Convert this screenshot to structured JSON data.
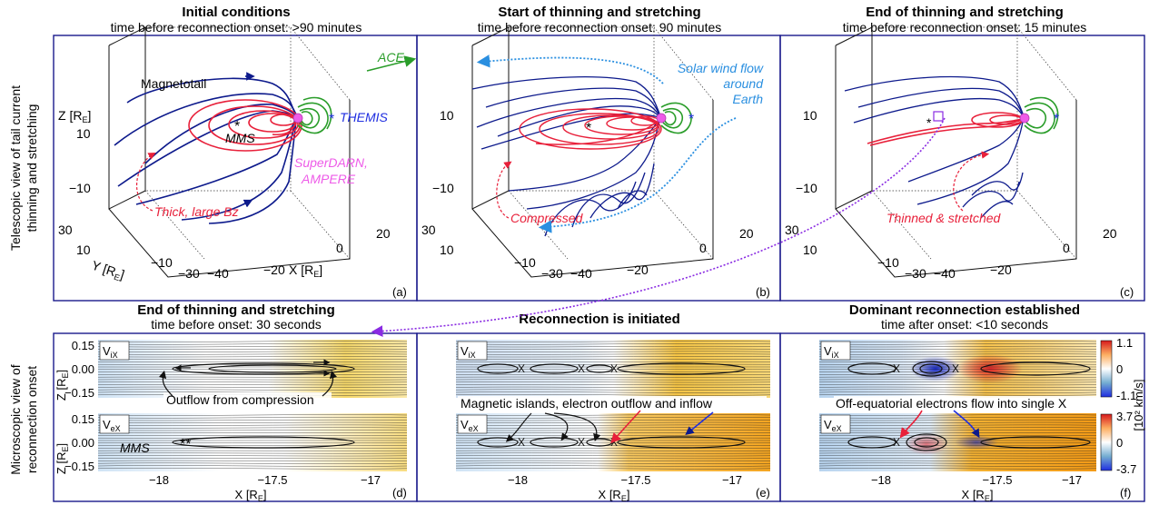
{
  "panel_titles": [
    {
      "title": "Initial conditions",
      "subtitle": "time before reconnection onset: >90 minutes"
    },
    {
      "title": "Start of thinning and stretching",
      "subtitle": "time before reconnection onset: 90 minutes"
    },
    {
      "title": "End of thinning and stretching",
      "subtitle": "time before reconnection onset: 15 minutes"
    },
    {
      "title": "End of thinning and stretching",
      "subtitle": "time before onset: 30 seconds"
    },
    {
      "title": "Reconnection is initiated",
      "subtitle": ""
    },
    {
      "title": "Dominant reconnection established",
      "subtitle": "time after onset: <10 seconds"
    }
  ],
  "row_labels": {
    "top": [
      "Telescopic view of tail current",
      "thinning and stretching"
    ],
    "bottom": [
      "Microscopic view of",
      "reconnection onset"
    ]
  },
  "panel_letters": [
    "(a)",
    "(b)",
    "(c)",
    "(d)",
    "(e)",
    "(f)"
  ],
  "axes3d": {
    "z_label": "Z [R",
    "z_sub": "E",
    "z_close": "]",
    "y_label": "Y [R",
    "y_sub": "E",
    "y_close": "]",
    "x_label": "X [R",
    "x_sub": "E",
    "x_close": "]",
    "z_ticks": [
      "10",
      "−10"
    ],
    "y_ticks": [
      "30",
      "10",
      "−10",
      "−30"
    ],
    "x_ticks": [
      "−40",
      "−20",
      "0",
      "20"
    ]
  },
  "annotations": {
    "a_magnetotail": "Magnetotail",
    "a_mms": "MMS",
    "a_themis": "THEMIS",
    "a_superdarn": "SuperDARN,",
    "a_ampere": "AMPERE",
    "a_thick": "Thick, large Bz",
    "ace": "ACE",
    "b_solarwind": [
      "Solar wind flow",
      "around",
      "Earth"
    ],
    "b_compressed": "Compressed",
    "c_thinned": "Thinned & stretched",
    "d_outflow": "Outflow from compression",
    "d_mms": "MMS",
    "e_islands": "Magnetic islands, electron outflow and inflow",
    "f_offequatorial": "Off-equatorial electrons flow into single X"
  },
  "plots2d": {
    "vix_label": "V",
    "vix_sub": "iX",
    "vex_label": "V",
    "vex_sub": "eX",
    "z_label": "Z [R",
    "z_sub": "E",
    "z_close": "]",
    "x_label": "X [R",
    "x_sub": "E",
    "x_close": "]",
    "z_ticks": [
      "0.15",
      "0.00",
      "−0.15"
    ],
    "x_ticks": [
      "−18",
      "−17.5",
      "−17"
    ]
  },
  "colorbars": {
    "unit": "[10² km/s]",
    "ion_ticks": [
      "1.1",
      "0",
      "-1.1"
    ],
    "electron_ticks": [
      "3.7",
      "0",
      "-3.7"
    ]
  },
  "colors": {
    "frame": "#1a1a8c",
    "field_lines": "#0d1a8c",
    "thin_sheet": "#e8203a",
    "dipole_inner": "#2a9d2a",
    "themis": "#1f2ee0",
    "superdarn": "#ee5be8",
    "solar_wind": "#2a8fe0",
    "annotation_red": "#e8203a",
    "purple_link": "#8a2be2"
  }
}
